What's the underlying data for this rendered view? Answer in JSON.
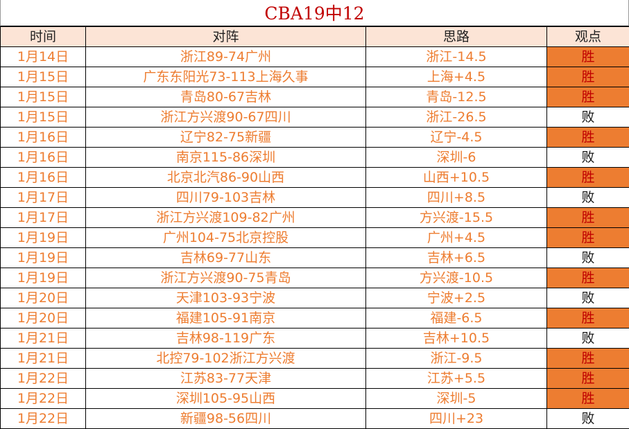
{
  "title": "CBA19中12",
  "headers": [
    "时间",
    "对阵",
    "思路",
    "观点"
  ],
  "colors": {
    "accent": "#ED7D31",
    "win_text": "#C00000",
    "header_bg": "#FCE4D6"
  },
  "rows": [
    [
      "1月14日",
      "浙江89-74广州",
      "浙江-14.5",
      "胜"
    ],
    [
      "1月15日",
      "广东东阳光73-113上海久事",
      "上海+4.5",
      "胜"
    ],
    [
      "1月15日",
      "青岛80-67吉林",
      "青岛-12.5",
      "胜"
    ],
    [
      "1月15日",
      "浙江方兴渡90-67四川",
      "浙江-26.5",
      "败"
    ],
    [
      "1月16日",
      "辽宁82-75新疆",
      "辽宁-4.5",
      "胜"
    ],
    [
      "1月16日",
      "南京115-86深圳",
      "深圳-6",
      "败"
    ],
    [
      "1月16日",
      "北京北汽86-90山西",
      "山西+10.5",
      "胜"
    ],
    [
      "1月17日",
      "四川79-103吉林",
      "四川+8.5",
      "败"
    ],
    [
      "1月17日",
      "浙江方兴渡109-82广州",
      "方兴渡-15.5",
      "胜"
    ],
    [
      "1月19日",
      "广州104-75北京控股",
      "广州+4.5",
      "胜"
    ],
    [
      "1月19日",
      "吉林69-77山东",
      "吉林+6.5",
      "败"
    ],
    [
      "1月19日",
      "浙江方兴渡90-75青岛",
      "方兴渡-10.5",
      "胜"
    ],
    [
      "1月20日",
      "天津103-93宁波",
      "宁波+2.5",
      "败"
    ],
    [
      "1月20日",
      "福建105-91南京",
      "福建-6.5",
      "胜"
    ],
    [
      "1月21日",
      "吉林98-119广东",
      "吉林+10.5",
      "败"
    ],
    [
      "1月21日",
      "北控79-102浙江方兴渡",
      "浙江-9.5",
      "胜"
    ],
    [
      "1月22日",
      "江苏83-77天津",
      "江苏+5.5",
      "胜"
    ],
    [
      "1月22日",
      "深圳105-95山西",
      "深圳-5",
      "胜"
    ],
    [
      "1月22日",
      "新疆98-56四川",
      "四川+23",
      "败"
    ]
  ]
}
